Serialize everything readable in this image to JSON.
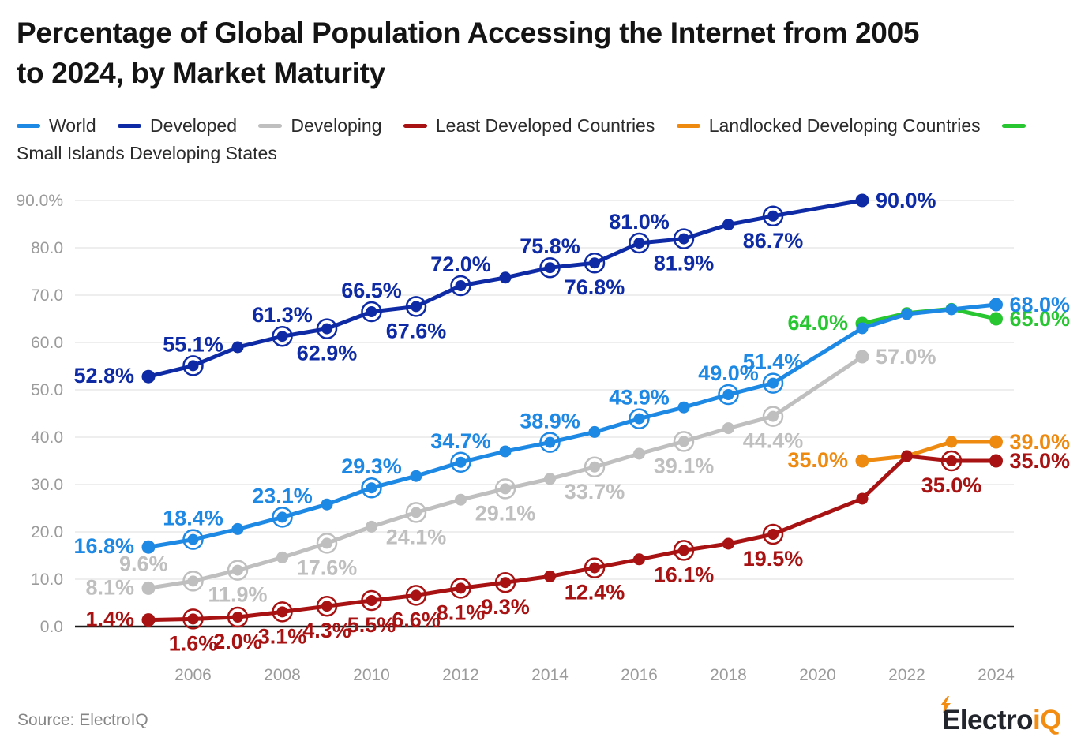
{
  "page": {
    "title_line1": "Percentage of Global Population Accessing the Internet from 2005",
    "title_line2": "to 2024, by Market Maturity",
    "source": "Source: ElectroIQ",
    "logo": {
      "part1": "Electro",
      "part2": "iQ",
      "accent_color": "#f28d11",
      "dark_color": "#23252d"
    }
  },
  "chart_data": {
    "type": "line",
    "title": "Percentage of Global Population Accessing the Internet from 2005 to 2024, by Market Maturity",
    "xlabel": "",
    "ylabel": "",
    "ylim": [
      0,
      93
    ],
    "x_range_years": [
      2005,
      2024
    ],
    "grid": "horizontal",
    "legend_position": "top",
    "x_axis": {
      "ticks": [
        2006,
        2008,
        2010,
        2012,
        2014,
        2016,
        2018,
        2020,
        2022,
        2024
      ]
    },
    "y_axis": {
      "ticks": [
        {
          "value": 0,
          "label": "0.0"
        },
        {
          "value": 10,
          "label": "10.0"
        },
        {
          "value": 20,
          "label": "20.0"
        },
        {
          "value": 30,
          "label": "30.0"
        },
        {
          "value": 40,
          "label": "40.0"
        },
        {
          "value": 50,
          "label": "50.0"
        },
        {
          "value": 60,
          "label": "60.0"
        },
        {
          "value": 70,
          "label": "70.0"
        },
        {
          "value": 80,
          "label": "80.0"
        },
        {
          "value": 90,
          "label": "90.0%"
        }
      ]
    },
    "draw_order": [
      "Developing",
      "Developed",
      "Small Islands Developing States",
      "World",
      "Landlocked Developing Countries",
      "Least Developed Countries"
    ],
    "series": [
      {
        "name": "World",
        "color": "#1e88e5",
        "points": [
          {
            "year": 2005,
            "value": 16.8,
            "label": "16.8%",
            "pos": "left"
          },
          {
            "year": 2006,
            "value": 18.4,
            "label": "18.4%",
            "pos": "above"
          },
          {
            "year": 2007,
            "value": 20.6
          },
          {
            "year": 2008,
            "value": 23.1,
            "label": "23.1%",
            "pos": "above"
          },
          {
            "year": 2009,
            "value": 25.8
          },
          {
            "year": 2010,
            "value": 29.3,
            "label": "29.3%",
            "pos": "above"
          },
          {
            "year": 2011,
            "value": 31.8
          },
          {
            "year": 2012,
            "value": 34.7,
            "label": "34.7%",
            "pos": "above"
          },
          {
            "year": 2013,
            "value": 37.0
          },
          {
            "year": 2014,
            "value": 38.9,
            "label": "38.9%",
            "pos": "above"
          },
          {
            "year": 2015,
            "value": 41.1
          },
          {
            "year": 2016,
            "value": 43.9,
            "label": "43.9%",
            "pos": "above"
          },
          {
            "year": 2017,
            "value": 46.3
          },
          {
            "year": 2018,
            "value": 49.0,
            "label": "49.0%",
            "pos": "above"
          },
          {
            "year": 2019,
            "value": 51.4,
            "label": "51.4%",
            "pos": "above"
          },
          {
            "year": 2021,
            "value": 63.0
          },
          {
            "year": 2022,
            "value": 66.0
          },
          {
            "year": 2023,
            "value": 67.0
          },
          {
            "year": 2024,
            "value": 68.0,
            "label": "68.0%",
            "pos": "right"
          }
        ]
      },
      {
        "name": "Developed",
        "color": "#0e2ba5",
        "points": [
          {
            "year": 2005,
            "value": 52.8,
            "label": "52.8%",
            "pos": "left"
          },
          {
            "year": 2006,
            "value": 55.1,
            "label": "55.1%",
            "pos": "above"
          },
          {
            "year": 2007,
            "value": 59.0
          },
          {
            "year": 2008,
            "value": 61.3,
            "label": "61.3%",
            "pos": "above"
          },
          {
            "year": 2009,
            "value": 62.9,
            "label": "62.9%",
            "pos": "below"
          },
          {
            "year": 2010,
            "value": 66.5,
            "label": "66.5%",
            "pos": "above"
          },
          {
            "year": 2011,
            "value": 67.6,
            "label": "67.6%",
            "pos": "below"
          },
          {
            "year": 2012,
            "value": 72.0,
            "label": "72.0%",
            "pos": "above"
          },
          {
            "year": 2013,
            "value": 73.7
          },
          {
            "year": 2014,
            "value": 75.8,
            "label": "75.8%",
            "pos": "above"
          },
          {
            "year": 2015,
            "value": 76.8,
            "label": "76.8%",
            "pos": "below"
          },
          {
            "year": 2016,
            "value": 81.0,
            "label": "81.0%",
            "pos": "above"
          },
          {
            "year": 2017,
            "value": 81.9,
            "label": "81.9%",
            "pos": "below"
          },
          {
            "year": 2018,
            "value": 84.9
          },
          {
            "year": 2019,
            "value": 86.7,
            "label": "86.7%",
            "pos": "below"
          },
          {
            "year": 2021,
            "value": 90.0,
            "label": "90.0%",
            "pos": "right"
          }
        ]
      },
      {
        "name": "Developing",
        "color": "#bfbfbf",
        "points": [
          {
            "year": 2005,
            "value": 8.1,
            "label": "8.1%",
            "pos": "left"
          },
          {
            "year": 2006,
            "value": 9.6,
            "label": "9.6%",
            "pos": "above-left"
          },
          {
            "year": 2007,
            "value": 11.9,
            "label": "11.9%",
            "pos": "below"
          },
          {
            "year": 2008,
            "value": 14.6
          },
          {
            "year": 2009,
            "value": 17.6,
            "label": "17.6%",
            "pos": "below"
          },
          {
            "year": 2010,
            "value": 21.1
          },
          {
            "year": 2011,
            "value": 24.1,
            "label": "24.1%",
            "pos": "below"
          },
          {
            "year": 2012,
            "value": 26.8
          },
          {
            "year": 2013,
            "value": 29.1,
            "label": "29.1%",
            "pos": "below"
          },
          {
            "year": 2014,
            "value": 31.2
          },
          {
            "year": 2015,
            "value": 33.7,
            "label": "33.7%",
            "pos": "below"
          },
          {
            "year": 2016,
            "value": 36.5
          },
          {
            "year": 2017,
            "value": 39.1,
            "label": "39.1%",
            "pos": "below"
          },
          {
            "year": 2018,
            "value": 41.9
          },
          {
            "year": 2019,
            "value": 44.4,
            "label": "44.4%",
            "pos": "below"
          },
          {
            "year": 2021,
            "value": 57.0,
            "label": "57.0%",
            "pos": "right"
          }
        ]
      },
      {
        "name": "Least Developed Countries",
        "color": "#a81212",
        "points": [
          {
            "year": 2005,
            "value": 1.4,
            "label": "1.4%",
            "pos": "left"
          },
          {
            "year": 2006,
            "value": 1.6,
            "label": "1.6%",
            "pos": "below"
          },
          {
            "year": 2007,
            "value": 2.0,
            "label": "2.0%",
            "pos": "below"
          },
          {
            "year": 2008,
            "value": 3.1,
            "label": "3.1%",
            "pos": "below"
          },
          {
            "year": 2009,
            "value": 4.3,
            "label": "4.3%",
            "pos": "below"
          },
          {
            "year": 2010,
            "value": 5.5,
            "label": "5.5%",
            "pos": "below"
          },
          {
            "year": 2011,
            "value": 6.6,
            "label": "6.6%",
            "pos": "below"
          },
          {
            "year": 2012,
            "value": 8.1,
            "label": "8.1%",
            "pos": "below"
          },
          {
            "year": 2013,
            "value": 9.3,
            "label": "9.3%",
            "pos": "below"
          },
          {
            "year": 2014,
            "value": 10.6
          },
          {
            "year": 2015,
            "value": 12.4,
            "label": "12.4%",
            "pos": "below"
          },
          {
            "year": 2016,
            "value": 14.2
          },
          {
            "year": 2017,
            "value": 16.1,
            "label": "16.1%",
            "pos": "below"
          },
          {
            "year": 2018,
            "value": 17.5
          },
          {
            "year": 2019,
            "value": 19.5,
            "label": "19.5%",
            "pos": "below"
          },
          {
            "year": 2021,
            "value": 27.0
          },
          {
            "year": 2022,
            "value": 36.0
          },
          {
            "year": 2023,
            "value": 35.0,
            "label": "35.0%",
            "pos": "below"
          },
          {
            "year": 2024,
            "value": 35.0,
            "label": "35.0%",
            "pos": "right"
          }
        ]
      },
      {
        "name": "Landlocked Developing Countries",
        "color": "#ef8a11",
        "points": [
          {
            "year": 2021,
            "value": 35.0,
            "label": "35.0%",
            "pos": "left"
          },
          {
            "year": 2022,
            "value": 36.0
          },
          {
            "year": 2023,
            "value": 39.0
          },
          {
            "year": 2024,
            "value": 39.0,
            "label": "39.0%",
            "pos": "right"
          }
        ]
      },
      {
        "name": "Small Islands Developing States",
        "color": "#28c732",
        "points": [
          {
            "year": 2021,
            "value": 64.0,
            "label": "64.0%",
            "pos": "left"
          },
          {
            "year": 2022,
            "value": 66.2
          },
          {
            "year": 2023,
            "value": 67.1
          },
          {
            "year": 2024,
            "value": 65.0,
            "label": "65.0%",
            "pos": "right"
          }
        ]
      }
    ],
    "colors": {
      "grid": "#e9e9e9",
      "zero_axis": "#1a1a1a",
      "axis_text": "#9b9b9b"
    }
  }
}
